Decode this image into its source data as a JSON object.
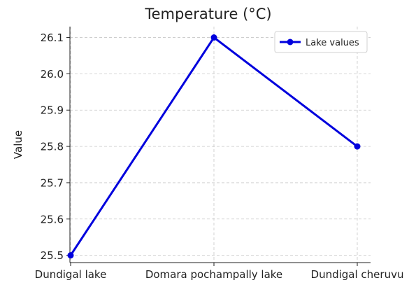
{
  "chart_data": {
    "type": "line",
    "title": "Temperature (°C)",
    "xlabel": "",
    "ylabel": "Value",
    "categories": [
      "Dundigal lake",
      "Domara pochampally lake",
      "Dundigal cheruvu"
    ],
    "series": [
      {
        "name": "Lake values",
        "values": [
          25.5,
          26.1,
          25.8
        ],
        "color": "#0000dd"
      }
    ],
    "ylim": [
      25.48,
      26.13
    ],
    "yticks": [
      "25.5",
      "25.6",
      "25.7",
      "25.8",
      "25.9",
      "26.0",
      "26.1"
    ],
    "grid": true,
    "legend": "top-right"
  }
}
